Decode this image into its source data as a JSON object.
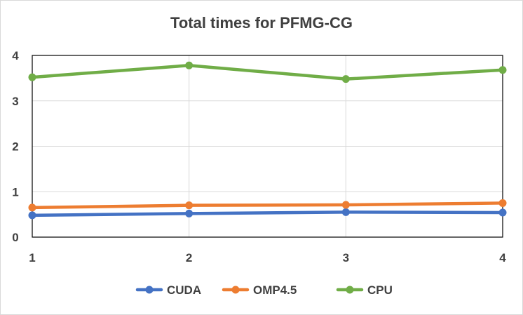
{
  "chart_data": {
    "type": "line",
    "title": "Total times for PFMG-CG",
    "xlabel": "",
    "ylabel": "",
    "x": [
      1,
      2,
      3,
      4
    ],
    "xlim": [
      1,
      4
    ],
    "ylim": [
      0,
      4
    ],
    "yticks": [
      0,
      1,
      2,
      3,
      4
    ],
    "grid": true,
    "legend": "bottom",
    "series": [
      {
        "name": "CUDA",
        "color": "#4472C4",
        "values": [
          0.48,
          0.52,
          0.55,
          0.54
        ]
      },
      {
        "name": "OMP4.5",
        "color": "#ED7D31",
        "values": [
          0.65,
          0.7,
          0.71,
          0.75
        ]
      },
      {
        "name": "CPU",
        "color": "#70AD47",
        "values": [
          3.52,
          3.78,
          3.48,
          3.68
        ]
      }
    ]
  }
}
